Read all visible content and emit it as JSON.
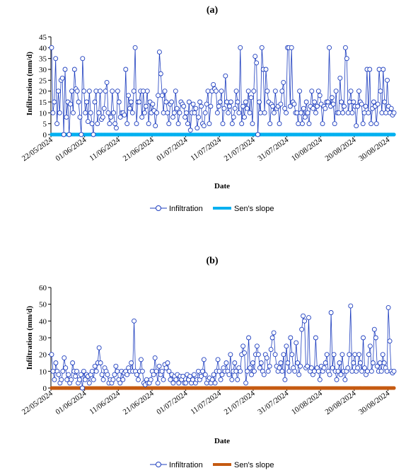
{
  "chart_data": [
    {
      "type": "line",
      "title": "(a)",
      "xlabel": "Date",
      "ylabel": "Infiltration (mm/d)",
      "ylim": [
        0,
        45
      ],
      "yticks": [
        0,
        5,
        10,
        15,
        20,
        25,
        30,
        35,
        40,
        45
      ],
      "x_tick_labels": [
        "22/05/2024",
        "01/06/2024",
        "11/06/2024",
        "21/06/2024",
        "01/07/2024",
        "11/07/2024",
        "21/07/2024",
        "31/07/2024",
        "10/08/2024",
        "20/08/2024",
        "30/08/2024"
      ],
      "x_start": "2024-05-22",
      "x_end": "2024-09-01",
      "grid": false,
      "legend_position": "bottom",
      "series": [
        {
          "name": "Infiltration",
          "color": "#1f3fbf",
          "marker": "circle",
          "values": [
            40,
            10,
            15,
            35,
            5,
            20,
            10,
            25,
            26,
            0,
            30,
            8,
            15,
            0,
            14,
            20,
            10,
            30,
            21,
            20,
            15,
            8,
            0,
            35,
            20,
            10,
            15,
            6,
            20,
            10,
            5,
            0,
            15,
            20,
            5,
            10,
            20,
            7,
            8,
            12,
            20,
            24,
            10,
            5,
            8,
            20,
            10,
            5,
            3,
            20,
            15,
            8,
            10,
            10,
            9,
            30,
            5,
            18,
            12,
            15,
            10,
            20,
            40,
            5,
            15,
            15,
            20,
            8,
            20,
            10,
            13,
            20,
            5,
            15,
            10,
            14,
            11,
            4,
            10,
            18,
            38,
            28,
            18,
            10,
            20,
            15,
            10,
            5,
            14,
            15,
            8,
            10,
            20,
            12,
            5,
            10,
            15,
            14,
            13,
            8,
            10,
            5,
            15,
            2,
            10,
            14,
            10,
            12,
            3,
            8,
            15,
            13,
            5,
            4,
            10,
            14,
            20,
            5,
            13,
            20,
            23,
            21,
            20,
            10,
            13,
            15,
            20,
            5,
            12,
            27,
            15,
            10,
            13,
            15,
            5,
            8,
            12,
            20,
            15,
            10,
            40,
            5,
            13,
            8,
            15,
            12,
            20,
            10,
            17,
            5,
            20,
            36,
            33,
            0,
            15,
            10,
            40,
            30,
            10,
            30,
            20,
            15,
            5,
            14,
            13,
            10,
            20,
            12,
            13,
            5,
            14,
            20,
            24,
            12,
            10,
            40,
            40,
            13,
            40,
            15,
            14,
            10,
            10,
            5,
            20,
            10,
            5,
            12,
            8,
            15,
            10,
            5,
            13,
            20,
            12,
            15,
            10,
            13,
            20,
            18,
            14,
            5,
            13,
            12,
            15,
            15,
            40,
            13,
            17,
            14,
            5,
            20,
            10,
            10,
            26,
            15,
            10,
            13,
            40,
            35,
            10,
            15,
            20,
            10,
            15,
            13,
            4,
            13,
            20,
            15,
            14,
            5,
            10,
            13,
            30,
            10,
            30,
            5,
            12,
            15,
            13,
            5,
            14,
            30,
            20,
            10,
            30,
            15,
            10,
            25,
            13,
            10,
            12,
            9,
            10
          ]
        },
        {
          "name": "Sen's slope",
          "color": "#00b0f0",
          "constant": 0
        }
      ]
    },
    {
      "type": "line",
      "title": "(b)",
      "xlabel": "Date",
      "ylabel": "Infiltration (mm/d)",
      "ylim": [
        0,
        60
      ],
      "yticks": [
        0,
        10,
        20,
        30,
        40,
        50,
        60
      ],
      "x_tick_labels": [
        "22/05/2024",
        "01/06/2024",
        "11/06/2024",
        "21/06/2024",
        "01/07/2024",
        "11/07/2024",
        "21/07/2024",
        "31/07/2024",
        "10/08/2024",
        "20/08/2024",
        "30/08/2024"
      ],
      "x_start": "2024-05-22",
      "x_end": "2024-09-01",
      "grid": false,
      "legend_position": "bottom",
      "series": [
        {
          "name": "Infiltration",
          "color": "#1f3fbf",
          "marker": "circle",
          "values": [
            20,
            10,
            5,
            15,
            10,
            8,
            3,
            5,
            10,
            18,
            12,
            5,
            8,
            3,
            5,
            15,
            10,
            7,
            10,
            3,
            5,
            8,
            0,
            10,
            5,
            8,
            7,
            3,
            8,
            10,
            5,
            13,
            10,
            15,
            24,
            15,
            8,
            5,
            12,
            10,
            8,
            3,
            5,
            3,
            5,
            8,
            13,
            10,
            5,
            3,
            10,
            5,
            9,
            10,
            8,
            12,
            10,
            15,
            10,
            40,
            10,
            8,
            5,
            10,
            17,
            10,
            3,
            2,
            5,
            3,
            3,
            5,
            10,
            8,
            18,
            10,
            3,
            13,
            8,
            10,
            5,
            14,
            12,
            15,
            10,
            5,
            8,
            3,
            7,
            5,
            8,
            3,
            7,
            5,
            7,
            3,
            3,
            8,
            5,
            7,
            3,
            5,
            8,
            3,
            5,
            10,
            5,
            7,
            10,
            17,
            8,
            3,
            5,
            6,
            3,
            5,
            8,
            3,
            10,
            17,
            10,
            5,
            8,
            12,
            10,
            15,
            10,
            8,
            20,
            5,
            10,
            15,
            10,
            5,
            12,
            10,
            20,
            25,
            21,
            3,
            10,
            30,
            12,
            8,
            15,
            10,
            20,
            25,
            20,
            12,
            15,
            10,
            8,
            20,
            18,
            10,
            13,
            23,
            30,
            33,
            20,
            13,
            10,
            12,
            15,
            10,
            20,
            5,
            25,
            15,
            10,
            30,
            20,
            12,
            10,
            27,
            15,
            8,
            13,
            35,
            43,
            40,
            12,
            13,
            42,
            10,
            12,
            8,
            10,
            30,
            12,
            10,
            5,
            13,
            10,
            12,
            15,
            20,
            10,
            8,
            45,
            12,
            20,
            10,
            5,
            10,
            15,
            8,
            20,
            10,
            5,
            10,
            12,
            20,
            49,
            10,
            15,
            20,
            10,
            12,
            20,
            15,
            10,
            30,
            12,
            8,
            10,
            20,
            25,
            10,
            15,
            35,
            30,
            13,
            10,
            15,
            10,
            20,
            15,
            12,
            10,
            48,
            28,
            10,
            9,
            10
          ]
        },
        {
          "name": "Sen's slope",
          "color": "#c55a11",
          "constant": 0
        }
      ]
    }
  ]
}
